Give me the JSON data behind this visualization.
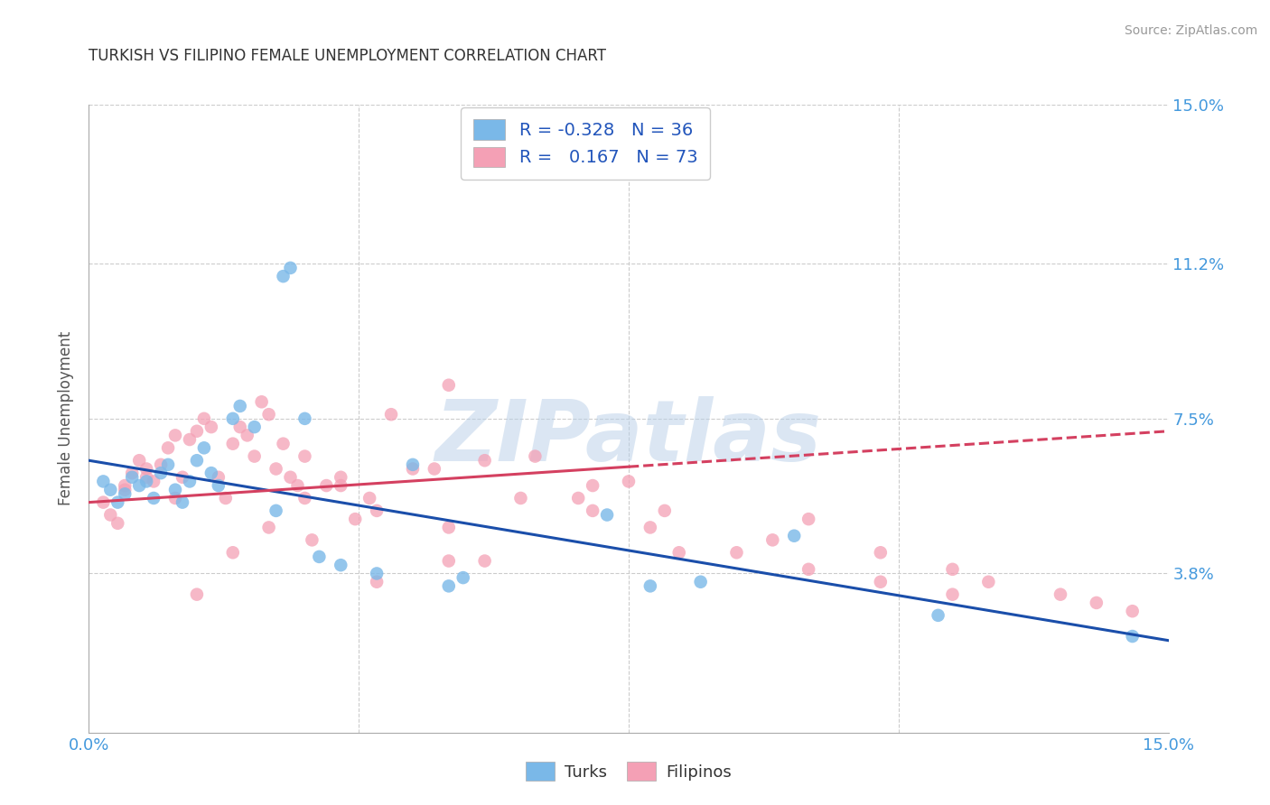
{
  "title": "TURKISH VS FILIPINO FEMALE UNEMPLOYMENT CORRELATION CHART",
  "source": "Source: ZipAtlas.com",
  "ylabel": "Female Unemployment",
  "xlim": [
    0.0,
    15.0
  ],
  "ylim": [
    0.0,
    15.0
  ],
  "yticks": [
    0.0,
    3.8,
    7.5,
    11.2,
    15.0
  ],
  "ytick_labels_right": [
    "",
    "3.8%",
    "7.5%",
    "11.2%",
    "15.0%"
  ],
  "xtick_labels": [
    "0.0%",
    "",
    "",
    "",
    "15.0%"
  ],
  "xticks": [
    0.0,
    3.75,
    7.5,
    11.25,
    15.0
  ],
  "turks_R": -0.328,
  "turks_N": 36,
  "filipinos_R": 0.167,
  "filipinos_N": 73,
  "turks_color": "#7ab8e8",
  "filipinos_color": "#f4a0b5",
  "trend_turks_color": "#1a4eaa",
  "trend_filipinos_color": "#d44060",
  "background_color": "#ffffff",
  "grid_color": "#cccccc",
  "title_color": "#333333",
  "axis_color": "#4499dd",
  "legend_text_color": "#2255bb",
  "turks_x": [
    0.2,
    0.3,
    0.4,
    0.5,
    0.6,
    0.7,
    0.8,
    0.9,
    1.0,
    1.1,
    1.2,
    1.3,
    1.4,
    1.5,
    1.6,
    1.7,
    1.8,
    2.0,
    2.1,
    2.3,
    2.7,
    2.8,
    3.0,
    3.5,
    4.0,
    4.5,
    5.0,
    5.2,
    7.2,
    7.8,
    8.5,
    9.8,
    11.8,
    14.5,
    2.6,
    3.2
  ],
  "turks_y": [
    6.0,
    5.8,
    5.5,
    5.7,
    6.1,
    5.9,
    6.0,
    5.6,
    6.2,
    6.4,
    5.8,
    5.5,
    6.0,
    6.5,
    6.8,
    6.2,
    5.9,
    7.5,
    7.8,
    7.3,
    10.9,
    11.1,
    7.5,
    4.0,
    3.8,
    6.4,
    3.5,
    3.7,
    5.2,
    3.5,
    3.6,
    4.7,
    2.8,
    2.3,
    5.3,
    4.2
  ],
  "filipinos_x": [
    0.2,
    0.3,
    0.4,
    0.5,
    0.6,
    0.7,
    0.8,
    0.9,
    1.0,
    1.1,
    1.2,
    1.3,
    1.4,
    1.5,
    1.6,
    1.7,
    1.8,
    1.9,
    2.0,
    2.1,
    2.2,
    2.3,
    2.4,
    2.5,
    2.6,
    2.7,
    2.8,
    2.9,
    3.0,
    3.1,
    3.3,
    3.5,
    3.7,
    3.9,
    4.0,
    4.2,
    4.5,
    4.8,
    5.0,
    5.0,
    5.5,
    5.5,
    6.2,
    6.8,
    7.0,
    7.5,
    7.8,
    8.2,
    9.5,
    10.0,
    11.0,
    12.0,
    12.5,
    13.5,
    14.0,
    14.5,
    0.5,
    0.8,
    1.2,
    1.5,
    2.0,
    2.5,
    3.0,
    3.5,
    4.0,
    5.0,
    6.0,
    7.0,
    8.0,
    9.0,
    10.0,
    11.0,
    12.0
  ],
  "filipinos_y": [
    5.5,
    5.2,
    5.0,
    5.8,
    6.2,
    6.5,
    6.3,
    6.0,
    6.4,
    6.8,
    5.6,
    6.1,
    7.0,
    7.2,
    7.5,
    7.3,
    6.1,
    5.6,
    6.9,
    7.3,
    7.1,
    6.6,
    7.9,
    7.6,
    6.3,
    6.9,
    6.1,
    5.9,
    6.6,
    4.6,
    5.9,
    6.1,
    5.1,
    5.6,
    3.6,
    7.6,
    6.3,
    6.3,
    4.1,
    8.3,
    4.1,
    6.5,
    6.6,
    5.6,
    5.3,
    6.0,
    4.9,
    4.3,
    4.6,
    5.1,
    4.3,
    3.9,
    3.6,
    3.3,
    3.1,
    2.9,
    5.9,
    6.1,
    7.1,
    3.3,
    4.3,
    4.9,
    5.6,
    5.9,
    5.3,
    4.9,
    5.6,
    5.9,
    5.3,
    4.3,
    3.9,
    3.6,
    3.3
  ],
  "turks_line_x": [
    0.0,
    15.0
  ],
  "turks_line_y": [
    6.5,
    2.2
  ],
  "filipinos_line_x": [
    0.0,
    15.0
  ],
  "filipinos_line_y": [
    5.5,
    7.2
  ],
  "filipinos_solid_end_x": 7.5
}
